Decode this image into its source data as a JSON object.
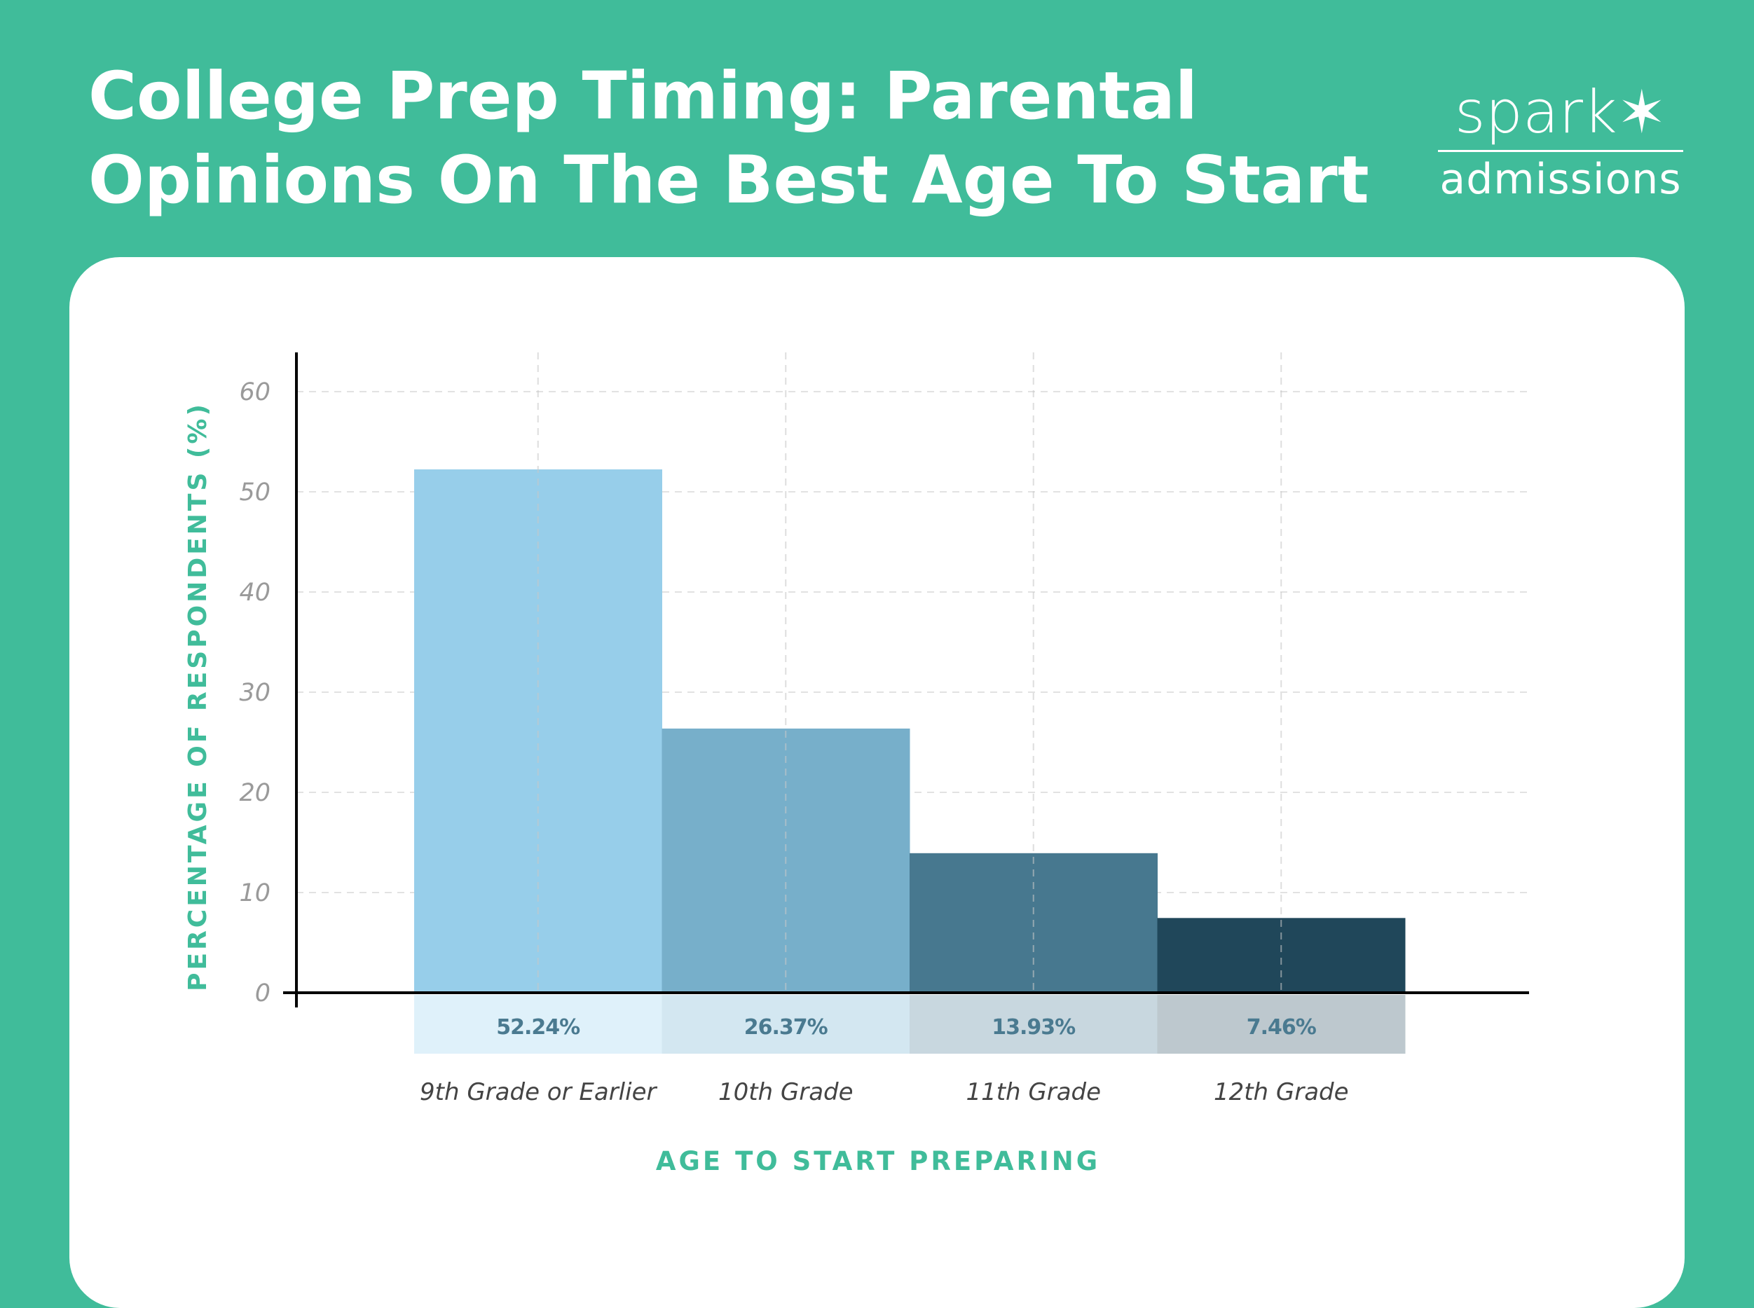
{
  "header": {
    "title_line1": "College Prep Timing: Parental",
    "title_line2": "Opinions On The Best Age To Start",
    "logo_text": "spark admissions"
  },
  "colors": {
    "background": "#40BC9A",
    "accent": "#40BC9A",
    "axis_title": "#40BC9A",
    "value_text": "#4A7A90"
  },
  "chart_data": {
    "type": "bar",
    "title": "College Prep Timing: Parental Opinions On The Best Age To Start",
    "xlabel": "AGE TO START PREPARING",
    "ylabel": "PERCENTAGE OF RESPONDENTS (%)",
    "categories": [
      "9th Grade or Earlier",
      "10th Grade",
      "11th Grade",
      "12th Grade"
    ],
    "values": [
      52.24,
      26.37,
      13.93,
      7.46
    ],
    "value_labels": [
      "52.24%",
      "26.37%",
      "13.93%",
      "7.46%"
    ],
    "bar_colors": [
      "#97CEEA",
      "#77AFCA",
      "#47788F",
      "#20475A"
    ],
    "label_box_colors": [
      "#DFF1FA",
      "#D3E7F1",
      "#C8D7DF",
      "#BDC8CE"
    ],
    "ylim": [
      0,
      60
    ],
    "yticks": [
      "0",
      "10",
      "20",
      "30",
      "40",
      "50",
      "60"
    ],
    "grid": true
  }
}
